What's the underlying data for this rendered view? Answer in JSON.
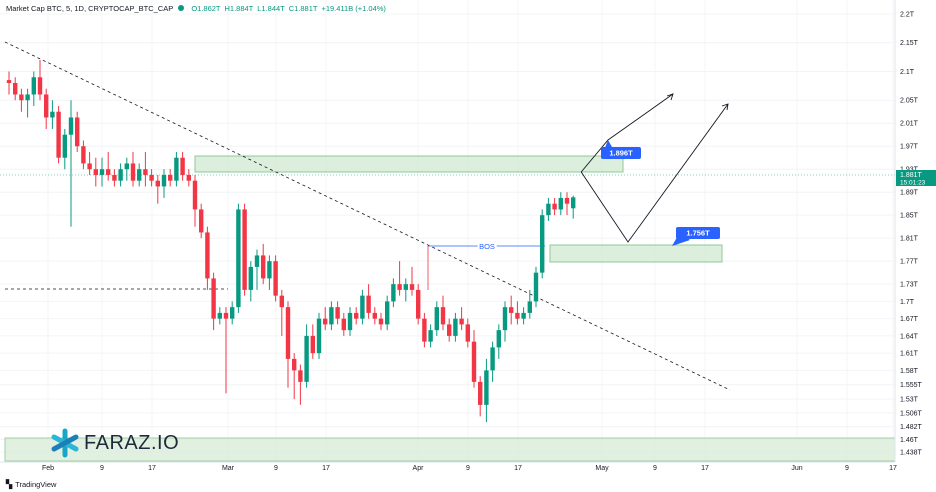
{
  "header": {
    "title": "Market Cap BTC, 5, 1D, CRYPTOCAP_BTC_CAP",
    "o": "O1.862T",
    "h": "H1.884T",
    "l": "L1.844T",
    "c": "C1.881T",
    "change": "+19.411B (+1.04%)"
  },
  "price_tag": {
    "value": "1.881T",
    "countdown": "15:01:23"
  },
  "footer": {
    "brand": "TradingView"
  },
  "watermark": {
    "text": "FARAZ.IO"
  },
  "colors": {
    "up": "#089981",
    "down": "#f23645",
    "zone_fill": "#d7ecd6",
    "zone_border": "#7dbf84",
    "label_bg": "#2962ff"
  },
  "chart_data": {
    "type": "candlestick",
    "y_axis_ticks": [
      "2.2T",
      "2.15T",
      "2.1T",
      "2.05T",
      "2.01T",
      "1.97T",
      "1.93T",
      "1.89T",
      "1.85T",
      "1.81T",
      "1.77T",
      "1.73T",
      "1.7T",
      "1.67T",
      "1.64T",
      "1.61T",
      "1.58T",
      "1.555T",
      "1.53T",
      "1.506T",
      "1.482T",
      "1.46T",
      "1.438T"
    ],
    "x_axis_ticks": [
      "Feb",
      "9",
      "17",
      "Mar",
      "9",
      "17",
      "Apr",
      "9",
      "17",
      "May",
      "9",
      "17",
      "Jun",
      "9",
      "17"
    ],
    "annotations": {
      "bos": "BOS",
      "target_upper": "1.896T",
      "target_lower": "1.756T"
    },
    "candles": [
      [
        2.085,
        2.1,
        2.06,
        2.08
      ],
      [
        2.08,
        2.09,
        2.05,
        2.06
      ],
      [
        2.06,
        2.07,
        2.03,
        2.05
      ],
      [
        2.05,
        2.07,
        2.02,
        2.06
      ],
      [
        2.06,
        2.1,
        2.04,
        2.09
      ],
      [
        2.09,
        2.12,
        2.05,
        2.06
      ],
      [
        2.06,
        2.07,
        2.0,
        2.02
      ],
      [
        2.02,
        2.05,
        2.0,
        2.03
      ],
      [
        2.03,
        2.04,
        1.94,
        1.95
      ],
      [
        1.95,
        2.0,
        1.93,
        1.99
      ],
      [
        1.99,
        2.05,
        1.83,
        2.02
      ],
      [
        2.02,
        2.03,
        1.96,
        1.97
      ],
      [
        1.97,
        1.98,
        1.93,
        1.94
      ],
      [
        1.94,
        1.96,
        1.92,
        1.93
      ],
      [
        1.93,
        1.95,
        1.9,
        1.92
      ],
      [
        1.92,
        1.95,
        1.9,
        1.93
      ],
      [
        1.93,
        1.96,
        1.91,
        1.92
      ],
      [
        1.92,
        1.93,
        1.9,
        1.91
      ],
      [
        1.91,
        1.94,
        1.9,
        1.93
      ],
      [
        1.93,
        1.95,
        1.91,
        1.94
      ],
      [
        1.94,
        1.96,
        1.9,
        1.91
      ],
      [
        1.91,
        1.94,
        1.9,
        1.93
      ],
      [
        1.93,
        1.96,
        1.9,
        1.92
      ],
      [
        1.92,
        1.93,
        1.9,
        1.91
      ],
      [
        1.91,
        1.92,
        1.87,
        1.9
      ],
      [
        1.9,
        1.93,
        1.88,
        1.92
      ],
      [
        1.92,
        1.93,
        1.9,
        1.91
      ],
      [
        1.91,
        1.96,
        1.9,
        1.95
      ],
      [
        1.95,
        1.96,
        1.91,
        1.92
      ],
      [
        1.92,
        1.93,
        1.9,
        1.91
      ],
      [
        1.91,
        1.92,
        1.83,
        1.86
      ],
      [
        1.86,
        1.87,
        1.81,
        1.82
      ],
      [
        1.82,
        1.83,
        1.72,
        1.74
      ],
      [
        1.74,
        1.75,
        1.65,
        1.67
      ],
      [
        1.67,
        1.69,
        1.66,
        1.68
      ],
      [
        1.68,
        1.69,
        1.54,
        1.67
      ],
      [
        1.67,
        1.7,
        1.66,
        1.69
      ],
      [
        1.69,
        1.87,
        1.68,
        1.86
      ],
      [
        1.86,
        1.87,
        1.71,
        1.72
      ],
      [
        1.72,
        1.77,
        1.7,
        1.76
      ],
      [
        1.76,
        1.79,
        1.72,
        1.78
      ],
      [
        1.78,
        1.8,
        1.73,
        1.74
      ],
      [
        1.74,
        1.78,
        1.72,
        1.77
      ],
      [
        1.77,
        1.78,
        1.7,
        1.71
      ],
      [
        1.71,
        1.72,
        1.64,
        1.69
      ],
      [
        1.69,
        1.7,
        1.55,
        1.6
      ],
      [
        1.6,
        1.61,
        1.53,
        1.58
      ],
      [
        1.58,
        1.59,
        1.52,
        1.56
      ],
      [
        1.56,
        1.66,
        1.55,
        1.64
      ],
      [
        1.64,
        1.66,
        1.6,
        1.61
      ],
      [
        1.61,
        1.68,
        1.6,
        1.67
      ],
      [
        1.67,
        1.69,
        1.65,
        1.66
      ],
      [
        1.66,
        1.7,
        1.65,
        1.69
      ],
      [
        1.69,
        1.7,
        1.66,
        1.67
      ],
      [
        1.67,
        1.68,
        1.64,
        1.65
      ],
      [
        1.65,
        1.69,
        1.64,
        1.68
      ],
      [
        1.68,
        1.69,
        1.66,
        1.67
      ],
      [
        1.67,
        1.72,
        1.66,
        1.71
      ],
      [
        1.71,
        1.73,
        1.67,
        1.68
      ],
      [
        1.68,
        1.69,
        1.66,
        1.67
      ],
      [
        1.67,
        1.68,
        1.65,
        1.66
      ],
      [
        1.66,
        1.71,
        1.65,
        1.7
      ],
      [
        1.7,
        1.74,
        1.69,
        1.73
      ],
      [
        1.73,
        1.77,
        1.71,
        1.72
      ],
      [
        1.72,
        1.74,
        1.7,
        1.73
      ],
      [
        1.73,
        1.76,
        1.71,
        1.72
      ],
      [
        1.72,
        1.73,
        1.66,
        1.67
      ],
      [
        1.67,
        1.68,
        1.62,
        1.63
      ],
      [
        1.63,
        1.66,
        1.62,
        1.65
      ],
      [
        1.65,
        1.7,
        1.64,
        1.69
      ],
      [
        1.69,
        1.71,
        1.65,
        1.66
      ],
      [
        1.66,
        1.67,
        1.63,
        1.64
      ],
      [
        1.64,
        1.68,
        1.63,
        1.67
      ],
      [
        1.67,
        1.69,
        1.65,
        1.66
      ],
      [
        1.66,
        1.67,
        1.62,
        1.63
      ],
      [
        1.63,
        1.65,
        1.55,
        1.56
      ],
      [
        1.56,
        1.57,
        1.5,
        1.52
      ],
      [
        1.52,
        1.6,
        1.49,
        1.58
      ],
      [
        1.58,
        1.63,
        1.56,
        1.62
      ],
      [
        1.62,
        1.66,
        1.6,
        1.65
      ],
      [
        1.65,
        1.7,
        1.63,
        1.69
      ],
      [
        1.69,
        1.71,
        1.66,
        1.68
      ],
      [
        1.68,
        1.7,
        1.66,
        1.67
      ],
      [
        1.67,
        1.69,
        1.66,
        1.68
      ],
      [
        1.68,
        1.72,
        1.67,
        1.7
      ],
      [
        1.7,
        1.76,
        1.69,
        1.75
      ],
      [
        1.75,
        1.86,
        1.74,
        1.85
      ],
      [
        1.85,
        1.88,
        1.84,
        1.87
      ],
      [
        1.87,
        1.88,
        1.85,
        1.86
      ],
      [
        1.86,
        1.89,
        1.85,
        1.88
      ],
      [
        1.88,
        1.89,
        1.85,
        1.87
      ],
      [
        1.862,
        1.884,
        1.844,
        1.881
      ]
    ]
  }
}
